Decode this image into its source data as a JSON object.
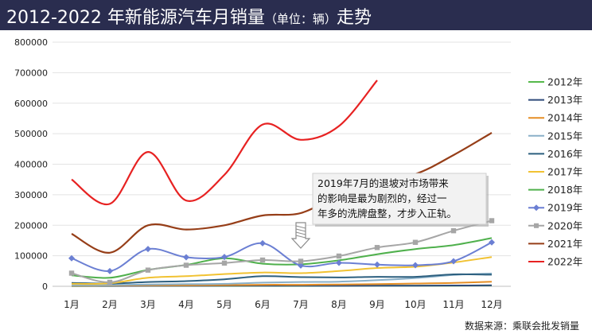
{
  "header": {
    "title_main": "2012-2022 年新能源汽车月销量",
    "title_unit": "（单位：辆）",
    "title_tail": "走势"
  },
  "source": "数据来源：乘联会批发销量",
  "chart_data": {
    "type": "line",
    "categories": [
      "1月",
      "2月",
      "3月",
      "4月",
      "5月",
      "6月",
      "7月",
      "8月",
      "9月",
      "10月",
      "11月",
      "12月"
    ],
    "y_ticks": [
      "0",
      "100000",
      "200000",
      "300000",
      "400000",
      "500000",
      "600000",
      "700000",
      "800000"
    ],
    "ylim": [
      0,
      800000
    ],
    "grid": true,
    "legend_position": "right",
    "annotation": {
      "lines": [
        "2019年7月的退坡对市场带来",
        "的影响是最为剧烈的，经过一",
        "年多的洗牌盘整，才步入正轨。"
      ],
      "points_to": "7月"
    },
    "series": [
      {
        "name": "2012年",
        "color": "#55b94a",
        "marker": "none",
        "values": [
          800,
          1000,
          1500,
          1200,
          1300,
          1500,
          1400,
          1500,
          1700,
          1800,
          2000,
          2500
        ]
      },
      {
        "name": "2013年",
        "color": "#2f4a7a",
        "marker": "none",
        "values": [
          1200,
          1300,
          1500,
          1600,
          1700,
          1800,
          1700,
          1600,
          2000,
          2200,
          2500,
          3000
        ]
      },
      {
        "name": "2014年",
        "color": "#e58e25",
        "marker": "none",
        "values": [
          2000,
          2500,
          3000,
          3500,
          4000,
          5000,
          5000,
          6000,
          7000,
          9000,
          11000,
          15000
        ]
      },
      {
        "name": "2015年",
        "color": "#8ab0c8",
        "marker": "none",
        "values": [
          3000,
          4000,
          6000,
          7000,
          8000,
          12000,
          14000,
          15000,
          20000,
          27000,
          37000,
          42000
        ]
      },
      {
        "name": "2016年",
        "color": "#2c5f7f",
        "marker": "none",
        "values": [
          11000,
          9000,
          14000,
          17000,
          23000,
          33000,
          30000,
          29000,
          31000,
          31000,
          39000,
          38000
        ]
      },
      {
        "name": "2017年",
        "color": "#f1c232",
        "marker": "none",
        "values": [
          8000,
          10000,
          28000,
          33000,
          40000,
          45000,
          43000,
          50000,
          60000,
          64000,
          78000,
          96000
        ]
      },
      {
        "name": "2018年",
        "color": "#4fb04c",
        "marker": "none",
        "values": [
          36000,
          28000,
          54000,
          70000,
          92000,
          74000,
          72000,
          85000,
          105000,
          122000,
          135000,
          158000
        ]
      },
      {
        "name": "2019年",
        "color": "#6b7fd3",
        "marker": "diamond",
        "values": [
          92000,
          50000,
          122000,
          95000,
          96000,
          141000,
          68000,
          77000,
          71000,
          69000,
          82000,
          144000
        ]
      },
      {
        "name": "2020年",
        "color": "#a6a6a6",
        "marker": "square",
        "values": [
          43000,
          13000,
          53000,
          69000,
          76000,
          86000,
          82000,
          99000,
          127000,
          144000,
          182000,
          215000
        ]
      },
      {
        "name": "2021年",
        "color": "#963e18",
        "marker": "none",
        "values": [
          172000,
          110000,
          200000,
          186000,
          200000,
          232000,
          240000,
          300000,
          352000,
          368000,
          430000,
          503000
        ]
      },
      {
        "name": "2022年",
        "color": "#e72222",
        "marker": "none",
        "values": [
          350000,
          270000,
          440000,
          281000,
          365000,
          530000,
          480000,
          525000,
          675000,
          null,
          null,
          null
        ]
      }
    ]
  }
}
